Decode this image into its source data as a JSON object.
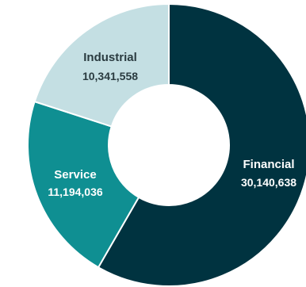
{
  "chart_data": {
    "type": "pie",
    "variant": "donut",
    "title": "",
    "segments": [
      {
        "name": "Financial",
        "value": 30140638,
        "label": "30,140,638",
        "color": "#003340",
        "text_color": "#ffffff"
      },
      {
        "name": "Service",
        "value": 11194036,
        "label": "11,194,036",
        "color": "#0f8f92",
        "text_color": "#ffffff"
      },
      {
        "name": "Industrial",
        "value": 10341558,
        "label": "10,341,558",
        "color": "#c4dfe3",
        "text_color": "#2a3b40"
      }
    ]
  }
}
